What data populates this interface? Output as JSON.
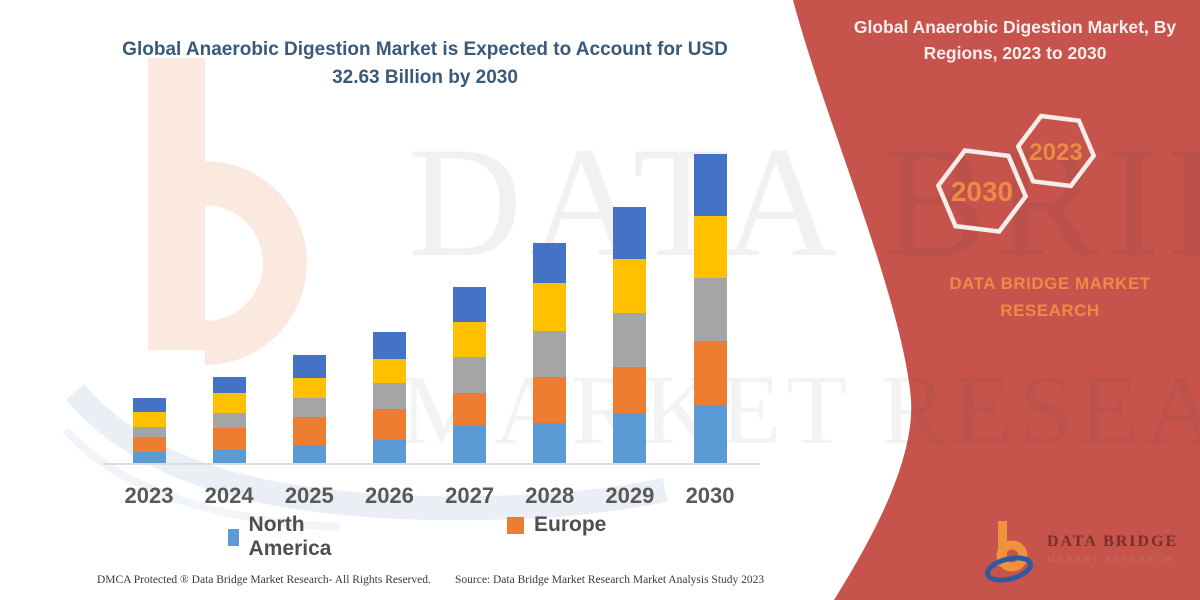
{
  "left_title": "Global Anaerobic Digestion Market is Expected to Account for USD 32.63 Billion by 2030",
  "chart_data": {
    "type": "bar",
    "stacked": true,
    "title": "Global Anaerobic Digestion Market is Expected to Account for USD 32.63 Billion by 2030",
    "categories": [
      "2023",
      "2024",
      "2025",
      "2026",
      "2027",
      "2028",
      "2029",
      "2030"
    ],
    "series": [
      {
        "name": "North America",
        "color": "#5b9bd5",
        "values": [
          12,
          14,
          19,
          24,
          39,
          41,
          51,
          59
        ]
      },
      {
        "name": "Europe",
        "color": "#ed7d31",
        "values": [
          15,
          22,
          28,
          31,
          32,
          46,
          46,
          64
        ]
      },
      {
        "name": "Unlabeled (gray)",
        "color": "#a5a5a5",
        "values": [
          10,
          15,
          19,
          26,
          36,
          46,
          54,
          63
        ]
      },
      {
        "name": "Unlabeled (yellow)",
        "color": "#ffc000",
        "values": [
          15,
          20,
          20,
          24,
          35,
          48,
          54,
          62
        ]
      },
      {
        "name": "Unlabeled (dark blue)",
        "color": "#4472c4",
        "values": [
          14,
          16,
          23,
          27,
          35,
          40,
          52,
          62
        ]
      }
    ],
    "value_unit": "relative height units (no y-axis shown in figure)",
    "stack_totals": [
      66,
      87,
      109,
      132,
      177,
      221,
      257,
      310
    ],
    "legend_visible": [
      "North America",
      "Europe"
    ],
    "y_axis_visible": false,
    "grid": false,
    "legend_position": "bottom"
  },
  "legend": [
    {
      "label": "North America",
      "color": "#5b9bd5"
    },
    {
      "label": "Europe",
      "color": "#ed7d31"
    }
  ],
  "right_panel": {
    "title": "Global Anaerobic Digestion Market, By Regions, 2023 to 2030",
    "background_color": "#c6534c",
    "accent_text_color": "#ee8a45",
    "hexagons": [
      {
        "label": "2030"
      },
      {
        "label": "2023"
      }
    ],
    "brand_text": "DATA BRIDGE MARKET RESEARCH"
  },
  "watermark": {
    "line1": "DATA BRIDGE",
    "line2": "MARKET RESEARCH"
  },
  "footer": {
    "left": "DMCA Protected ® Data Bridge Market Research-  All Rights Reserved.",
    "right": "Source: Data Bridge Market Research  Market Analysis Study 2023"
  },
  "logo": {
    "name": "DATA BRIDGE",
    "tagline": "MARKET RESEARCH"
  }
}
